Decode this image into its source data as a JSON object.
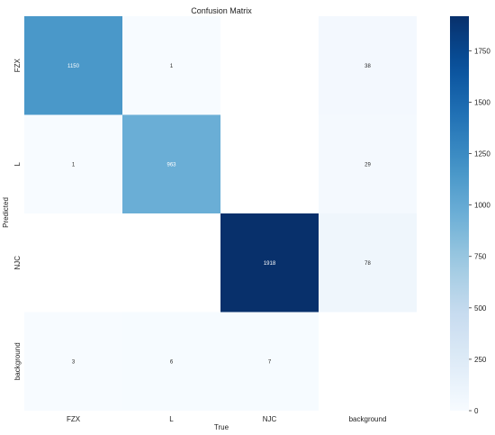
{
  "chart_data": {
    "type": "heatmap",
    "title": "Confusion Matrix",
    "xlabel": "True",
    "ylabel": "Predicted",
    "x_categories": [
      "FZX",
      "L",
      "NJC",
      "background"
    ],
    "y_categories": [
      "FZX",
      "L",
      "NJC",
      "background"
    ],
    "matrix": [
      [
        1150,
        1,
        null,
        38
      ],
      [
        1,
        963,
        null,
        29
      ],
      [
        null,
        null,
        1918,
        78
      ],
      [
        3,
        6,
        7,
        null
      ]
    ],
    "value_range": [
      0,
      1918
    ],
    "colorbar_ticks": [
      0,
      250,
      500,
      750,
      1000,
      1250,
      1500,
      1750
    ],
    "colormap": "Blues",
    "colors": {
      "low": "#f7fbff",
      "high": "#08306b",
      "empty": "#ffffff"
    },
    "grid": false
  }
}
